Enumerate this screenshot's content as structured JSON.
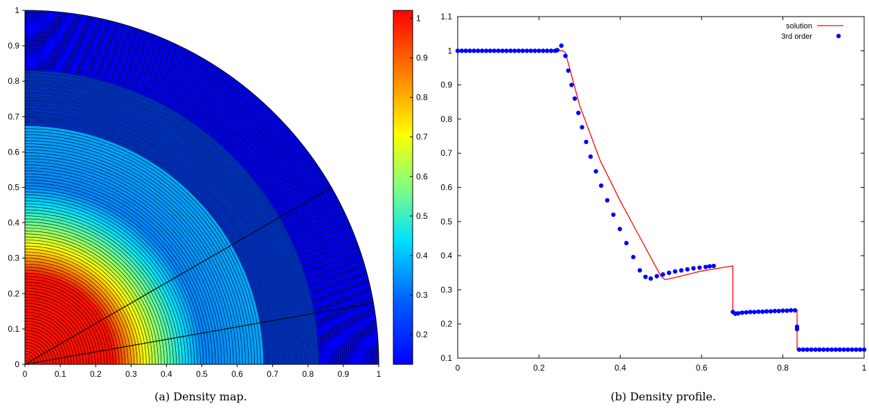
{
  "captions": {
    "left": "(a) Density map.",
    "right": "(b) Density profile."
  },
  "chart_data": [
    {
      "type": "heatmap",
      "description_type": "quarter-disk radial density map",
      "xlim": [
        0,
        1
      ],
      "ylim": [
        0,
        1
      ],
      "x_ticks": [
        "0",
        "0.1",
        "0.2",
        "0.3",
        "0.4",
        "0.5",
        "0.6",
        "0.7",
        "0.8",
        "0.9",
        "1"
      ],
      "y_ticks": [
        "0",
        "0.1",
        "0.2",
        "0.3",
        "0.4",
        "0.5",
        "0.6",
        "0.7",
        "0.8",
        "0.9",
        "1"
      ],
      "colorbar": {
        "range": [
          0.125,
          1.02
        ],
        "ticks": [
          "0.2",
          "0.3",
          "0.4",
          "0.5",
          "0.6",
          "0.7",
          "0.8",
          "0.9",
          "1"
        ],
        "colormap": [
          "#0000ff",
          "#0080ff",
          "#00ffff",
          "#80ff80",
          "#ffff00",
          "#ff8000",
          "#ff0000"
        ]
      },
      "radial_profile": [
        [
          0,
          1.0
        ],
        [
          0.255,
          1.0
        ],
        [
          0.3,
          0.84
        ],
        [
          0.35,
          0.68
        ],
        [
          0.4,
          0.56
        ],
        [
          0.45,
          0.45
        ],
        [
          0.51,
          0.33
        ],
        [
          0.6,
          0.355
        ],
        [
          0.677,
          0.37
        ],
        [
          0.678,
          0.235
        ],
        [
          0.83,
          0.24
        ],
        [
          0.835,
          0.125
        ],
        [
          1.0,
          0.125
        ]
      ],
      "rays_degrees": [
        10,
        30
      ]
    },
    {
      "type": "line",
      "xlim": [
        0,
        1
      ],
      "ylim": [
        0.1,
        1.1
      ],
      "x_ticks": [
        "0",
        "0.2",
        "0.4",
        "0.6",
        "0.8",
        "1"
      ],
      "y_ticks": [
        "0.1",
        "0.2",
        "0.3",
        "0.4",
        "0.5",
        "0.6",
        "0.7",
        "0.8",
        "0.9",
        "1",
        "1.1"
      ],
      "legend": "top-right",
      "series": [
        {
          "name": "solution",
          "color": "#ff0000",
          "points": [
            [
              0,
              1.0
            ],
            [
              0.258,
              1.0
            ],
            [
              0.265,
              0.995
            ],
            [
              0.3,
              0.84
            ],
            [
              0.35,
              0.68
            ],
            [
              0.4,
              0.56
            ],
            [
              0.45,
              0.45
            ],
            [
              0.5,
              0.34
            ],
            [
              0.51,
              0.33
            ],
            [
              0.52,
              0.332
            ],
            [
              0.6,
              0.355
            ],
            [
              0.677,
              0.37
            ],
            [
              0.677,
              0.235
            ],
            [
              0.7,
              0.236
            ],
            [
              0.8,
              0.238
            ],
            [
              0.835,
              0.24
            ],
            [
              0.835,
              0.125
            ],
            [
              1.0,
              0.125
            ]
          ]
        },
        {
          "name": "3rd order",
          "color": "#0000ff",
          "points": [
            [
              0.0,
              1.0
            ],
            [
              0.01,
              1.0
            ],
            [
              0.02,
              1.0
            ],
            [
              0.03,
              1.0
            ],
            [
              0.04,
              1.0
            ],
            [
              0.05,
              1.0
            ],
            [
              0.06,
              1.0
            ],
            [
              0.07,
              1.0
            ],
            [
              0.08,
              1.0
            ],
            [
              0.09,
              1.0
            ],
            [
              0.1,
              1.0
            ],
            [
              0.11,
              1.0
            ],
            [
              0.12,
              1.0
            ],
            [
              0.13,
              1.0
            ],
            [
              0.14,
              1.0
            ],
            [
              0.15,
              1.0
            ],
            [
              0.16,
              1.0
            ],
            [
              0.17,
              1.0
            ],
            [
              0.18,
              1.0
            ],
            [
              0.19,
              1.0
            ],
            [
              0.2,
              1.0
            ],
            [
              0.21,
              1.0
            ],
            [
              0.22,
              1.0
            ],
            [
              0.23,
              1.0
            ],
            [
              0.24,
              1.0
            ],
            [
              0.245,
              1.002
            ],
            [
              0.255,
              1.015
            ],
            [
              0.265,
              0.985
            ],
            [
              0.272,
              0.942
            ],
            [
              0.28,
              0.9
            ],
            [
              0.288,
              0.86
            ],
            [
              0.297,
              0.818
            ],
            [
              0.306,
              0.776
            ],
            [
              0.316,
              0.733
            ],
            [
              0.327,
              0.69
            ],
            [
              0.34,
              0.647
            ],
            [
              0.353,
              0.605
            ],
            [
              0.368,
              0.562
            ],
            [
              0.383,
              0.52
            ],
            [
              0.399,
              0.478
            ],
            [
              0.415,
              0.437
            ],
            [
              0.432,
              0.396
            ],
            [
              0.448,
              0.357
            ],
            [
              0.462,
              0.338
            ],
            [
              0.475,
              0.333
            ],
            [
              0.49,
              0.34
            ],
            [
              0.505,
              0.345
            ],
            [
              0.52,
              0.35
            ],
            [
              0.535,
              0.354
            ],
            [
              0.55,
              0.357
            ],
            [
              0.565,
              0.36
            ],
            [
              0.58,
              0.363
            ],
            [
              0.595,
              0.365
            ],
            [
              0.61,
              0.367
            ],
            [
              0.62,
              0.369
            ],
            [
              0.63,
              0.37
            ],
            [
              0.677,
              0.235
            ],
            [
              0.683,
              0.23
            ],
            [
              0.69,
              0.231
            ],
            [
              0.7,
              0.233
            ],
            [
              0.71,
              0.234
            ],
            [
              0.72,
              0.235
            ],
            [
              0.73,
              0.235
            ],
            [
              0.74,
              0.236
            ],
            [
              0.75,
              0.236
            ],
            [
              0.76,
              0.237
            ],
            [
              0.77,
              0.237
            ],
            [
              0.78,
              0.238
            ],
            [
              0.79,
              0.238
            ],
            [
              0.8,
              0.239
            ],
            [
              0.81,
              0.239
            ],
            [
              0.82,
              0.24
            ],
            [
              0.83,
              0.24
            ],
            [
              0.835,
              0.192
            ],
            [
              0.835,
              0.185
            ],
            [
              0.84,
              0.125
            ],
            [
              0.85,
              0.125
            ],
            [
              0.86,
              0.125
            ],
            [
              0.87,
              0.125
            ],
            [
              0.88,
              0.125
            ],
            [
              0.89,
              0.125
            ],
            [
              0.9,
              0.125
            ],
            [
              0.91,
              0.125
            ],
            [
              0.92,
              0.125
            ],
            [
              0.93,
              0.125
            ],
            [
              0.94,
              0.125
            ],
            [
              0.95,
              0.125
            ],
            [
              0.96,
              0.125
            ],
            [
              0.97,
              0.125
            ],
            [
              0.98,
              0.125
            ],
            [
              0.99,
              0.125
            ],
            [
              1.0,
              0.125
            ]
          ]
        }
      ]
    }
  ]
}
